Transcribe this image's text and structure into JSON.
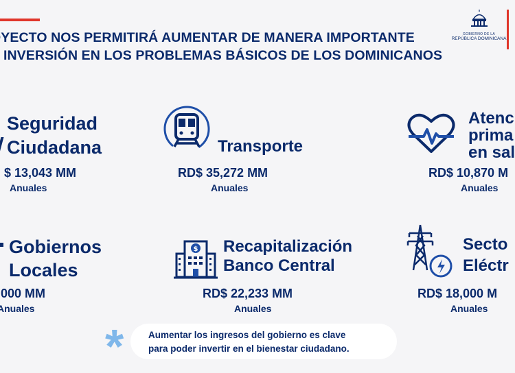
{
  "header": {
    "line1": "OYECTO NOS PERMITIRÁ AUMENTAR DE MANERA IMPORTANTE",
    "line2": "A INVERSIÓN EN LOS PROBLEMAS BÁSICOS DE LOS DOMINICANOS"
  },
  "logo": {
    "line1": "GOBIERNO DE LA",
    "line2": "REPÚBLICA DOMINICANA"
  },
  "items": [
    {
      "title1": "Seguridad",
      "title2": "Ciudadana",
      "amount": "$ 13,043 MM",
      "period": "Anuales"
    },
    {
      "title1": "Transporte",
      "amount": "RD$ 35,272 MM",
      "period": "Anuales",
      "icon": "train-icon"
    },
    {
      "title1": "Atenc",
      "title2": "prima",
      "title3": "en sal",
      "amount": "RD$ 10,870 M",
      "period": "Anuales",
      "icon": "heart-pulse-icon"
    },
    {
      "title1": "Gobiernos",
      "title2": "Locales",
      "amount": ",000 MM",
      "period": "Anuales"
    },
    {
      "title1": "Recapitalización",
      "title2": "Banco Central",
      "amount": "RD$ 22,233 MM",
      "period": "Anuales",
      "icon": "bank-building-icon"
    },
    {
      "title1": "Secto",
      "title2": "Eléctr",
      "amount": "RD$ 18,000 M",
      "period": "Anuales",
      "icon": "power-tower-icon"
    }
  ],
  "note": {
    "line1": "Aumentar los ingresos del gobierno es clave",
    "line2": "para poder invertir en el bienestar ciudadano."
  },
  "colors": {
    "primary": "#0b2a6b",
    "accent": "#e0362b",
    "icon_blue": "#1f4fa8",
    "light_blue": "#7fb7ea",
    "background": "#f5f5f7"
  }
}
